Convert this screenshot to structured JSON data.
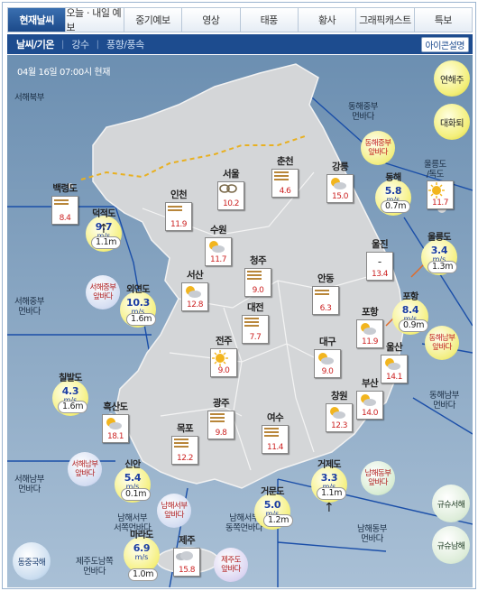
{
  "tabs": [
    "현재날씨",
    "오늘ㆍ내일 예보",
    "중기예보",
    "영상",
    "태풍",
    "황사",
    "그래픽캐스트",
    "특보"
  ],
  "subnav": {
    "items": [
      "날씨/기온",
      "강수",
      "풍향/풍속"
    ]
  },
  "icon_button": "아이콘설명",
  "timestamp": "04월 16일 07:00시 현재",
  "right_buttons": [
    "연해주",
    "대화퇴"
  ],
  "bottom_right_buttons": [
    "규슈서해",
    "규슈남해"
  ],
  "special_button": "동중국해",
  "sea_labels": {
    "northwest": "서해북부",
    "mid_west": "서해중부\n먼바다",
    "south_west": "서해남부\n먼바다",
    "east_mid_far": "동해중부\n먼바다",
    "east_south_far": "동해남부\n먼바다",
    "south_west_far": "남해서부\n서쪽먼바다",
    "south_east_far": "남해서부\n동쪽먼바다",
    "south_east": "남해동부\n먼바다",
    "jeju_south": "제주도남쪽\n먼바다",
    "ulleung": "울릉도\n/독도"
  },
  "zones": {
    "west_mid": "서해중부\n앞바다",
    "west_south": "서해남부\n앞바다",
    "south_west": "남해서부\n앞바다",
    "south_east": "남해동부\n앞바다",
    "jeju": "제주도\n앞바다",
    "east_mid": "동해중부\n앞바다",
    "east_south": "동해남부\n앞바다"
  },
  "cities": [
    {
      "name": "백령도",
      "temp": "8.4",
      "icon": "haze-icon"
    },
    {
      "name": "인천",
      "temp": "11.9",
      "icon": "haze-icon"
    },
    {
      "name": "서울",
      "temp": "10.2",
      "icon": "yellow-dust-icon"
    },
    {
      "name": "춘천",
      "temp": "4.6",
      "icon": "haze-icon"
    },
    {
      "name": "강릉",
      "temp": "15.0",
      "icon": "partly-cloudy-icon"
    },
    {
      "name": "수원",
      "temp": "11.7",
      "icon": "partly-cloudy-icon"
    },
    {
      "name": "청주",
      "temp": "9.0",
      "icon": "haze-icon"
    },
    {
      "name": "서산",
      "temp": "12.8",
      "icon": "partly-cloudy-icon"
    },
    {
      "name": "대전",
      "temp": "7.7",
      "icon": "haze-icon"
    },
    {
      "name": "안동",
      "temp": "6.3",
      "icon": "haze-icon"
    },
    {
      "name": "울진",
      "temp": "13.4",
      "icon": "dash-icon"
    },
    {
      "name": "포항",
      "temp": "11.9",
      "icon": "partly-cloudy-icon"
    },
    {
      "name": "전주",
      "temp": "9.0",
      "icon": "sunny-icon"
    },
    {
      "name": "대구",
      "temp": "9.0",
      "icon": "partly-cloudy-icon"
    },
    {
      "name": "울산",
      "temp": "14.1",
      "icon": "partly-cloudy-icon"
    },
    {
      "name": "광주",
      "temp": "9.8",
      "icon": "haze-icon"
    },
    {
      "name": "부산",
      "temp": "14.0",
      "icon": "partly-cloudy-icon"
    },
    {
      "name": "창원",
      "temp": "12.3",
      "icon": "partly-cloudy-icon"
    },
    {
      "name": "흑산도",
      "temp": "18.1",
      "icon": "partly-cloudy-icon"
    },
    {
      "name": "목포",
      "temp": "12.2",
      "icon": "haze-icon"
    },
    {
      "name": "여수",
      "temp": "11.4",
      "icon": "haze-icon"
    },
    {
      "name": "제주",
      "temp": "15.8",
      "icon": "cloudy-icon"
    },
    {
      "name": "울릉도",
      "temp": "11.7",
      "icon": "sunny-icon"
    }
  ],
  "buoys": [
    {
      "name": "덕적도",
      "speed": "9.7",
      "unit": "m/s",
      "wave": "1.1m"
    },
    {
      "name": "외연도",
      "speed": "10.3",
      "unit": "m/s",
      "wave": "1.6m"
    },
    {
      "name": "칠발도",
      "speed": "4.3",
      "unit": "m/s",
      "wave": "1.6m"
    },
    {
      "name": "신안",
      "speed": "5.4",
      "unit": "m/s",
      "wave": "0.1m"
    },
    {
      "name": "마라도",
      "speed": "6.9",
      "unit": "m/s",
      "wave": "1.0m"
    },
    {
      "name": "거문도",
      "speed": "5.0",
      "unit": "m/s",
      "wave": "1.2m"
    },
    {
      "name": "거제도",
      "speed": "3.3",
      "unit": "m/s",
      "wave": "1.1m"
    },
    {
      "name": "포항",
      "speed": "8.4",
      "unit": "m/s",
      "wave": "0.9m"
    },
    {
      "name": "동해",
      "speed": "5.8",
      "unit": "m/s",
      "wave": "0.7m"
    },
    {
      "name": "울릉도",
      "speed": "3.4",
      "unit": "m/s",
      "wave": "1.3m"
    }
  ]
}
